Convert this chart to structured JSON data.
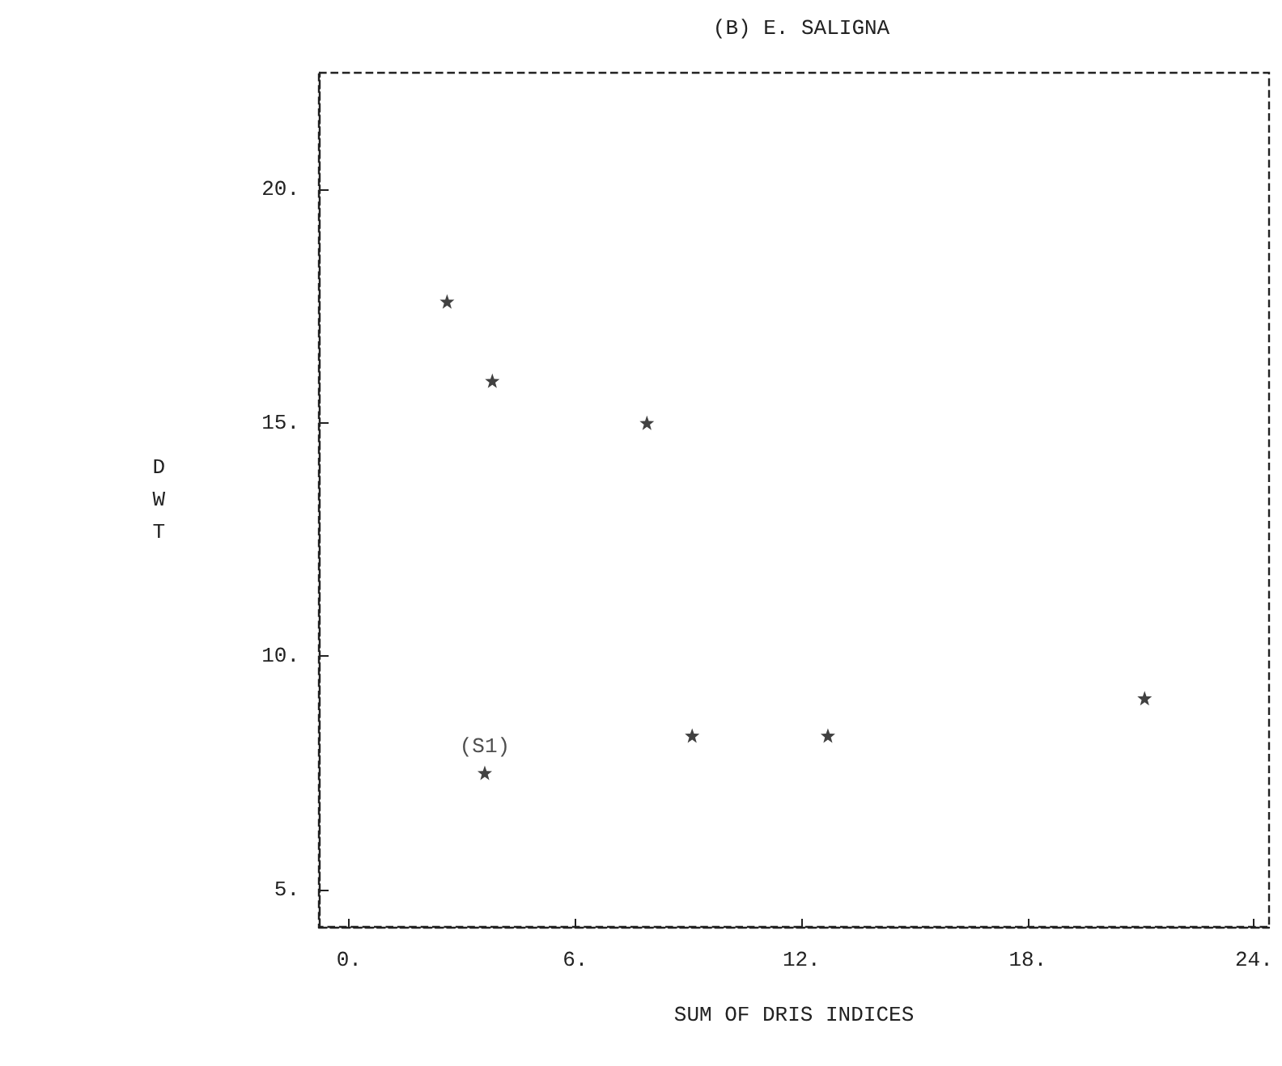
{
  "chart_data": {
    "type": "scatter",
    "title": "(B) E. SALIGNA",
    "xlabel": "SUM OF DRIS INDICES",
    "ylabel": "DWT",
    "x": [
      2.6,
      3.8,
      7.9,
      9.1,
      12.7,
      21.1,
      3.6
    ],
    "series": [
      {
        "color": "#111111",
        "values": [
          17.6,
          15.9,
          15.0,
          8.3,
          8.3,
          9.1,
          7.5
        ]
      }
    ],
    "annotations": [
      {
        "text": "(S1)",
        "x": 3.6,
        "y": 7.5
      }
    ],
    "xlim": [
      -0.8,
      24.4
    ],
    "ylim": [
      4.2,
      22.5
    ],
    "xticks": [
      {
        "value": 0,
        "label": "0."
      },
      {
        "value": 6,
        "label": "6."
      },
      {
        "value": 12,
        "label": "12."
      },
      {
        "value": 18,
        "label": "18."
      },
      {
        "value": 24,
        "label": "24."
      }
    ],
    "yticks": [
      {
        "value": 5,
        "label": "5."
      },
      {
        "value": 10,
        "label": "10."
      },
      {
        "value": 15,
        "label": "15."
      },
      {
        "value": 20,
        "label": "20."
      }
    ],
    "grid": false,
    "marker": "star"
  }
}
